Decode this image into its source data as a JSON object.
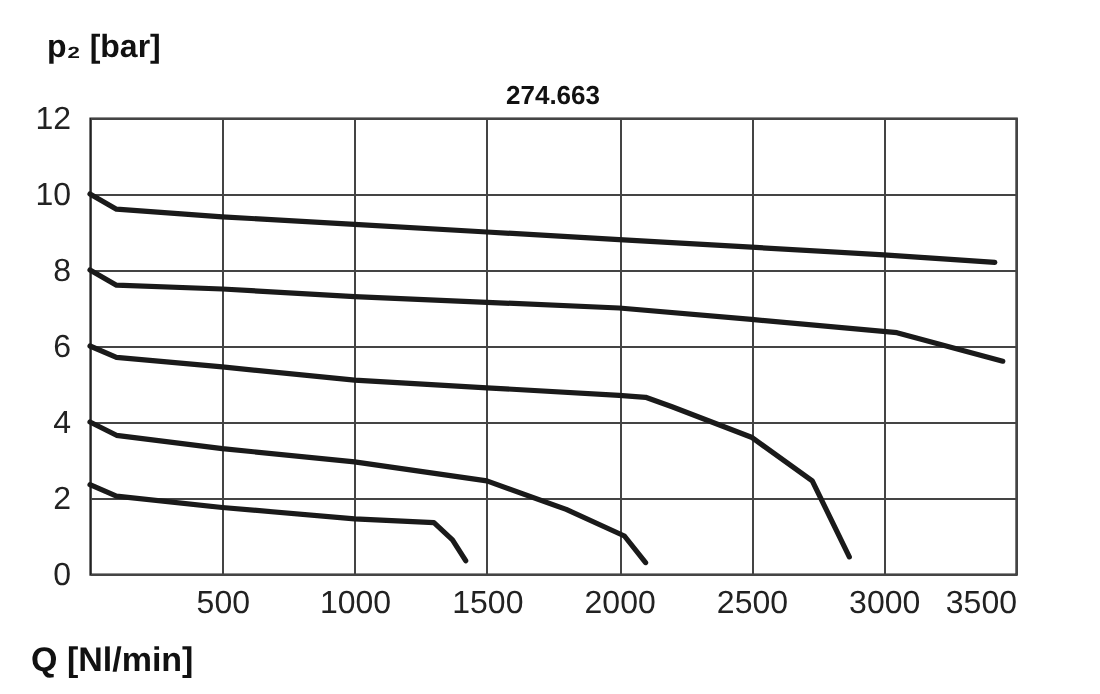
{
  "chart_data": {
    "type": "line",
    "title": "274.663",
    "xlabel": "Q [Nl/min]",
    "ylabel": "p₂ [bar]",
    "xlim": [
      0,
      3500
    ],
    "ylim": [
      0,
      12
    ],
    "xticks": [
      500,
      1000,
      1500,
      2000,
      2500,
      3000,
      3500
    ],
    "yticks": [
      0,
      2,
      4,
      6,
      8,
      10,
      12
    ],
    "grid": true,
    "series": [
      {
        "color": "#1a1a1a",
        "x": [
          0,
          100,
          500,
          1000,
          1500,
          2000,
          2500,
          3000,
          3420
        ],
        "values": [
          10,
          9.6,
          9.4,
          9.2,
          9.0,
          8.8,
          8.6,
          8.4,
          8.2
        ]
      },
      {
        "color": "#1a1a1a",
        "x": [
          0,
          100,
          500,
          1000,
          1500,
          2000,
          2500,
          3050,
          3450
        ],
        "values": [
          8,
          7.6,
          7.5,
          7.3,
          7.15,
          7.0,
          6.7,
          6.35,
          5.6
        ]
      },
      {
        "color": "#1a1a1a",
        "x": [
          0,
          100,
          500,
          1000,
          1500,
          2000,
          2100,
          2200,
          2500,
          2730,
          2870
        ],
        "values": [
          6,
          5.7,
          5.45,
          5.1,
          4.9,
          4.7,
          4.65,
          4.4,
          3.6,
          2.45,
          0.45
        ]
      },
      {
        "color": "#1a1a1a",
        "x": [
          0,
          100,
          500,
          1000,
          1500,
          1800,
          2020,
          2100
        ],
        "values": [
          4,
          3.65,
          3.3,
          2.95,
          2.45,
          1.7,
          1.0,
          0.3
        ]
      },
      {
        "color": "#1a1a1a",
        "x": [
          0,
          100,
          500,
          1000,
          1300,
          1370,
          1420
        ],
        "values": [
          2.35,
          2.05,
          1.75,
          1.45,
          1.35,
          0.9,
          0.35
        ]
      }
    ]
  }
}
